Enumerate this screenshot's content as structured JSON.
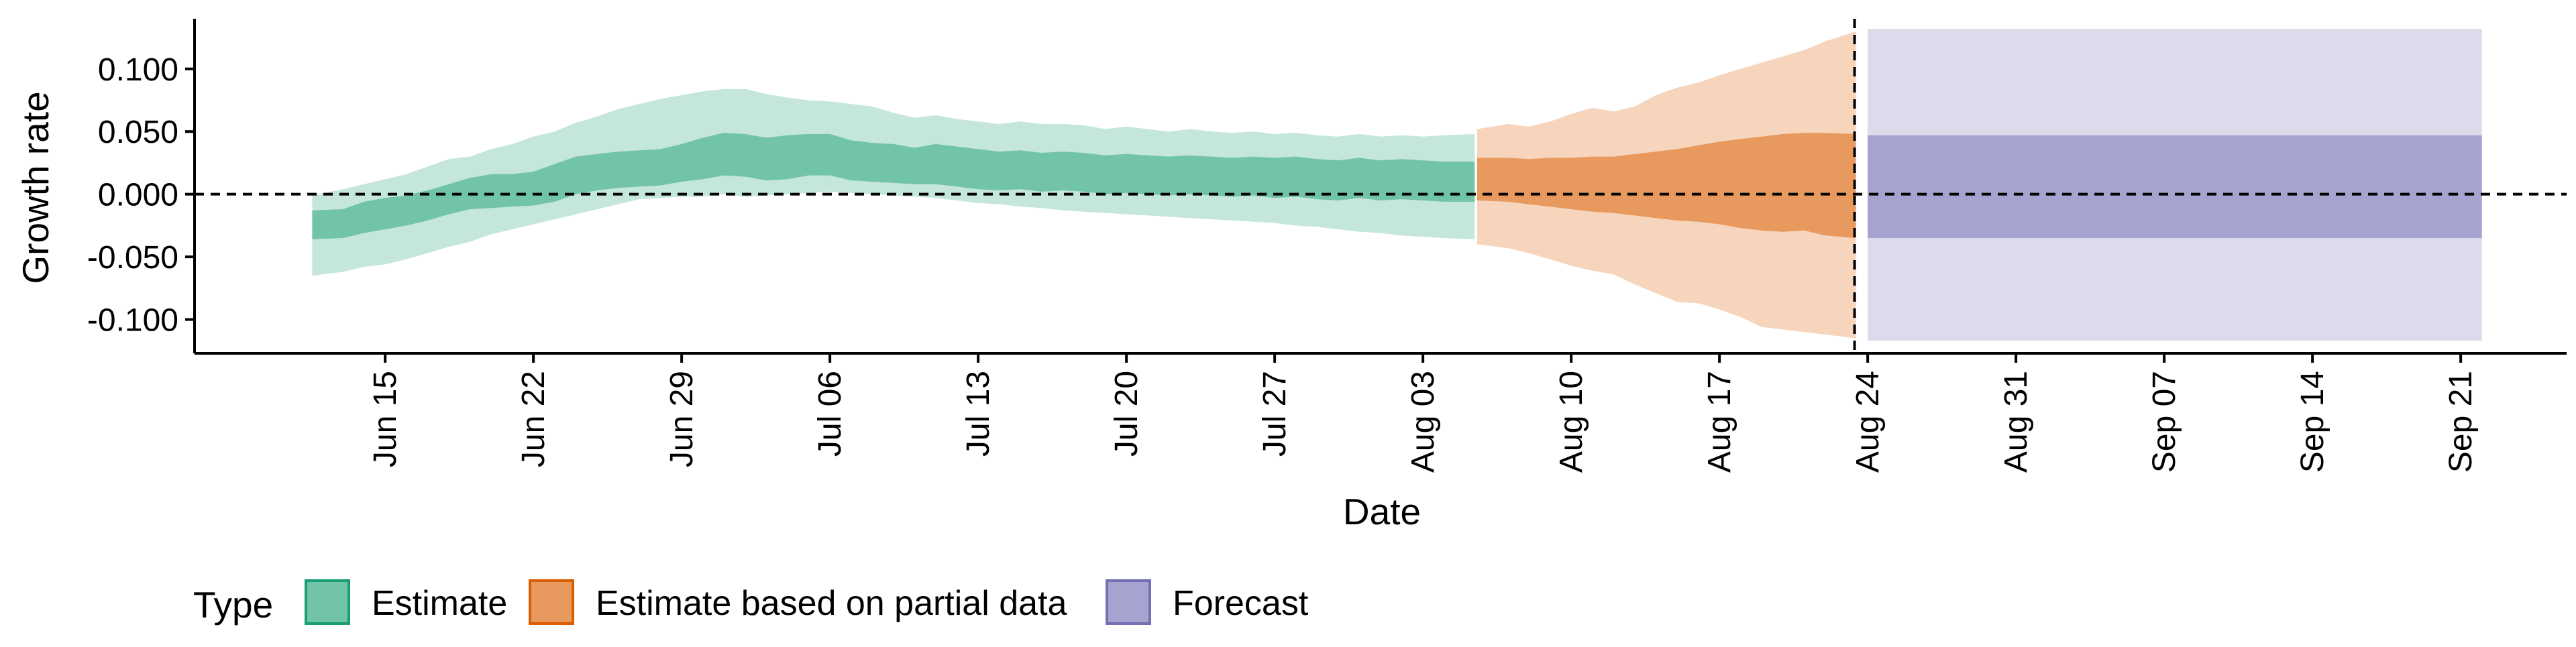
{
  "chart_data": {
    "type": "area",
    "title": "",
    "xlabel": "Date",
    "ylabel": "Growth rate",
    "x_ticks": [
      "Jun 15",
      "Jun 22",
      "Jun 29",
      "Jul 06",
      "Jul 13",
      "Jul 20",
      "Jul 27",
      "Aug 03",
      "Aug 10",
      "Aug 17",
      "Aug 24",
      "Aug 31",
      "Sep 07",
      "Sep 14",
      "Sep 21"
    ],
    "y_ticks": [
      "-0.100",
      "-0.050",
      "0.000",
      "0.050",
      "0.100"
    ],
    "y_tick_values": [
      -0.1,
      -0.05,
      0,
      0.05,
      0.1
    ],
    "ylim": [
      -0.127,
      0.14
    ],
    "xlim": [
      "2021-06-06",
      "2021-09-26"
    ],
    "grid": false,
    "reference_lines": {
      "horizontal_y": 0,
      "vertical_x": "2021-08-23"
    },
    "legend": {
      "title": "Type",
      "placement": "bottom-left",
      "entries": [
        "Estimate",
        "Estimate based on partial data",
        "Forecast"
      ]
    },
    "colors": {
      "estimate_outer": "#c4e6dc",
      "estimate_inner": "#72c4a9",
      "estimate_border": "#1b9e77",
      "partial_outer": "#f6d5bc",
      "partial_inner": "#e89a5e",
      "partial_border": "#d95f02",
      "forecast_outer": "#dcdaeb",
      "forecast_inner": "#a7a3d0",
      "forecast_border": "#7570b3"
    },
    "series": [
      {
        "name": "Estimate",
        "x": [
          "2021-06-12",
          "2021-06-13",
          "2021-06-14",
          "2021-06-15",
          "2021-06-16",
          "2021-06-17",
          "2021-06-18",
          "2021-06-19",
          "2021-06-20",
          "2021-06-21",
          "2021-06-22",
          "2021-06-23",
          "2021-06-24",
          "2021-06-25",
          "2021-06-26",
          "2021-06-27",
          "2021-06-28",
          "2021-06-29",
          "2021-06-30",
          "2021-07-01",
          "2021-07-02",
          "2021-07-03",
          "2021-07-04",
          "2021-07-05",
          "2021-07-06",
          "2021-07-07",
          "2021-07-08",
          "2021-07-09",
          "2021-07-10",
          "2021-07-11",
          "2021-07-12",
          "2021-07-13",
          "2021-07-14",
          "2021-07-15",
          "2021-07-16",
          "2021-07-17",
          "2021-07-18",
          "2021-07-19",
          "2021-07-20",
          "2021-07-21",
          "2021-07-22",
          "2021-07-23",
          "2021-07-24",
          "2021-07-25",
          "2021-07-26",
          "2021-07-27",
          "2021-07-28",
          "2021-07-29",
          "2021-07-30",
          "2021-07-31",
          "2021-08-01",
          "2021-08-02",
          "2021-08-03",
          "2021-08-04",
          "2021-08-05"
        ],
        "upper_90": [
          -0.001,
          0.004,
          0.008,
          0.012,
          0.016,
          0.022,
          0.028,
          0.03,
          0.036,
          0.04,
          0.046,
          0.05,
          0.057,
          0.062,
          0.068,
          0.072,
          0.076,
          0.079,
          0.082,
          0.084,
          0.084,
          0.08,
          0.077,
          0.075,
          0.074,
          0.072,
          0.07,
          0.065,
          0.061,
          0.063,
          0.06,
          0.058,
          0.056,
          0.058,
          0.056,
          0.056,
          0.055,
          0.052,
          0.054,
          0.052,
          0.05,
          0.052,
          0.05,
          0.049,
          0.05,
          0.048,
          0.049,
          0.047,
          0.046,
          0.048,
          0.046,
          0.047,
          0.046,
          0.047,
          0.048
        ],
        "upper_50": [
          -0.013,
          -0.012,
          -0.006,
          -0.003,
          -0.001,
          0.003,
          0.008,
          0.013,
          0.016,
          0.016,
          0.018,
          0.024,
          0.03,
          0.032,
          0.034,
          0.035,
          0.036,
          0.04,
          0.045,
          0.049,
          0.048,
          0.045,
          0.047,
          0.048,
          0.048,
          0.043,
          0.041,
          0.04,
          0.037,
          0.04,
          0.038,
          0.036,
          0.034,
          0.035,
          0.033,
          0.034,
          0.033,
          0.031,
          0.032,
          0.031,
          0.03,
          0.031,
          0.03,
          0.029,
          0.03,
          0.029,
          0.03,
          0.028,
          0.027,
          0.029,
          0.027,
          0.028,
          0.027,
          0.026,
          0.026
        ],
        "lower_50": [
          -0.036,
          -0.035,
          -0.031,
          -0.028,
          -0.025,
          -0.021,
          -0.016,
          -0.012,
          -0.011,
          -0.01,
          -0.009,
          -0.006,
          0.0,
          0.003,
          0.005,
          0.006,
          0.007,
          0.01,
          0.012,
          0.015,
          0.014,
          0.011,
          0.012,
          0.015,
          0.015,
          0.011,
          0.01,
          0.009,
          0.008,
          0.008,
          0.006,
          0.004,
          0.003,
          0.004,
          0.002,
          0.003,
          0.002,
          0.0,
          0.001,
          0.0,
          -0.001,
          0.0,
          -0.001,
          -0.002,
          -0.001,
          -0.003,
          -0.002,
          -0.004,
          -0.005,
          -0.003,
          -0.005,
          -0.004,
          -0.005,
          -0.006,
          -0.006
        ],
        "lower_90": [
          -0.065,
          -0.062,
          -0.058,
          -0.056,
          -0.052,
          -0.047,
          -0.042,
          -0.038,
          -0.032,
          -0.028,
          -0.024,
          -0.02,
          -0.016,
          -0.012,
          -0.008,
          -0.004,
          -0.003,
          -0.002,
          -0.002,
          0.0,
          -0.002,
          -0.001,
          0.0,
          0.001,
          0.002,
          0.001,
          0.0,
          -0.001,
          -0.002,
          -0.003,
          -0.005,
          -0.007,
          -0.008,
          -0.01,
          -0.011,
          -0.013,
          -0.014,
          -0.015,
          -0.016,
          -0.017,
          -0.018,
          -0.019,
          -0.02,
          -0.021,
          -0.022,
          -0.023,
          -0.025,
          -0.026,
          -0.028,
          -0.03,
          -0.031,
          -0.033,
          -0.034,
          -0.035,
          -0.036
        ]
      },
      {
        "name": "Estimate based on partial data",
        "x": [
          "2021-08-06",
          "2021-08-07",
          "2021-08-08",
          "2021-08-09",
          "2021-08-10",
          "2021-08-11",
          "2021-08-12",
          "2021-08-13",
          "2021-08-14",
          "2021-08-15",
          "2021-08-16",
          "2021-08-17",
          "2021-08-18",
          "2021-08-19",
          "2021-08-20",
          "2021-08-21",
          "2021-08-22",
          "2021-08-23"
        ],
        "upper_90": [
          0.052,
          0.056,
          0.054,
          0.058,
          0.064,
          0.069,
          0.066,
          0.07,
          0.079,
          0.085,
          0.089,
          0.095,
          0.1,
          0.105,
          0.11,
          0.115,
          0.122,
          0.13
        ],
        "upper_50": [
          0.029,
          0.029,
          0.028,
          0.029,
          0.029,
          0.03,
          0.03,
          0.032,
          0.034,
          0.036,
          0.039,
          0.042,
          0.044,
          0.046,
          0.048,
          0.049,
          0.049,
          0.048
        ],
        "lower_50": [
          -0.005,
          -0.006,
          -0.008,
          -0.01,
          -0.012,
          -0.014,
          -0.015,
          -0.017,
          -0.019,
          -0.021,
          -0.022,
          -0.024,
          -0.027,
          -0.029,
          -0.03,
          -0.029,
          -0.033,
          -0.035
        ],
        "lower_90": [
          -0.04,
          -0.043,
          -0.047,
          -0.052,
          -0.057,
          -0.061,
          -0.064,
          -0.072,
          -0.079,
          -0.086,
          -0.087,
          -0.092,
          -0.098,
          -0.106,
          -0.108,
          -0.11,
          -0.112,
          -0.115
        ]
      },
      {
        "name": "Forecast",
        "x": [
          "2021-08-24",
          "2021-09-22"
        ],
        "upper_90": [
          0.132,
          0.132
        ],
        "upper_50": [
          0.047,
          0.047
        ],
        "lower_50": [
          -0.035,
          -0.035
        ],
        "lower_90": [
          -0.117,
          -0.117
        ]
      }
    ]
  }
}
